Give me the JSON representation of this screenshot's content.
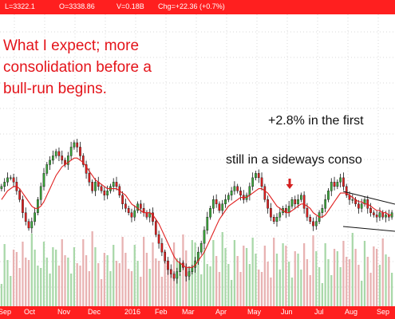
{
  "header": {
    "low": "L=3322.1",
    "open": "O=3338.86",
    "volume": "V=0.18B",
    "change": "Chg=+22.36 (+0.7%)"
  },
  "annotations": {
    "expectation": "What I expect; more\nconsolidation before a\nbull-run begins.",
    "first_note": "+2.8% in the first",
    "second_note": "still in a sideways conso"
  },
  "colors": {
    "bar_strip": "#ff1f1f",
    "annotation_red": "#e4141a",
    "moving_average": "#e02020",
    "candle_up": "#3aa63a",
    "candle_down": "#e02020",
    "candle_outline": "#111111",
    "volume_up": "#a9d8a9",
    "volume_down": "#e8b2b2",
    "grid": "#d8d8d8",
    "arrow": "#d42020"
  },
  "chart_data": {
    "type": "candlestick",
    "x_labels": [
      "Sep",
      "Oct",
      "Nov",
      "Dec",
      "2016",
      "Feb",
      "Mar",
      "Apr",
      "May",
      "Jun",
      "Jul",
      "Aug",
      "Sep"
    ],
    "overlay": "moving average",
    "grid": true,
    "lower_panel": "volume",
    "pattern": "descending wedge (Jul–Sep)",
    "marker": "down arrow above Jun candles",
    "close_trace": [
      46,
      48,
      50,
      50,
      48,
      44,
      40,
      34,
      30,
      27,
      30,
      34,
      40,
      46,
      52,
      56,
      58,
      60,
      62,
      60,
      58,
      56,
      60,
      64,
      66,
      64,
      60,
      56,
      52,
      48,
      44,
      48,
      46,
      44,
      42,
      44,
      46,
      48,
      46,
      42,
      38,
      36,
      34,
      32,
      35,
      38,
      36,
      34,
      32,
      34,
      30,
      24,
      20,
      16,
      12,
      8,
      6,
      4,
      7,
      11,
      9,
      5,
      7,
      9,
      12,
      16,
      20,
      26,
      32,
      36,
      40,
      38,
      35,
      38,
      40,
      42,
      44,
      46,
      44,
      42,
      40,
      42,
      46,
      50,
      52,
      50,
      46,
      40,
      36,
      32,
      30,
      32,
      34,
      36,
      34,
      37,
      40,
      38,
      40,
      42,
      36,
      32,
      30,
      28,
      30,
      34,
      36,
      40,
      44,
      48,
      46,
      48,
      50,
      46,
      42,
      40,
      40,
      38,
      36,
      38,
      40,
      36,
      34,
      33,
      32,
      34,
      32,
      33,
      32,
      34
    ],
    "ma_trace": [
      40,
      42,
      44,
      45,
      46,
      46,
      45,
      43,
      41,
      39,
      37,
      36,
      36,
      37,
      39,
      42,
      45,
      48,
      51,
      53,
      55,
      56,
      57,
      58,
      59,
      59,
      58,
      57,
      55,
      53,
      51,
      49,
      48,
      47,
      46,
      45,
      45,
      45,
      45,
      44,
      43,
      42,
      40,
      38,
      37,
      36,
      35,
      34,
      34,
      34,
      33,
      31,
      29,
      26,
      23,
      20,
      17,
      14,
      12,
      11,
      10,
      9,
      9,
      9,
      10,
      12,
      14,
      16,
      19,
      22,
      25,
      28,
      31,
      33,
      35,
      37,
      38,
      39,
      40,
      41,
      41,
      41,
      42,
      43,
      44,
      45,
      45,
      44,
      43,
      41,
      39,
      37,
      36,
      35,
      34,
      34,
      35,
      36,
      37,
      38,
      38,
      37,
      36,
      34,
      33,
      32,
      32,
      33,
      35,
      37,
      39,
      41,
      43,
      43,
      43,
      42,
      41,
      40,
      39,
      39,
      38,
      38,
      37,
      36,
      35,
      35,
      34,
      34,
      33,
      33
    ]
  }
}
